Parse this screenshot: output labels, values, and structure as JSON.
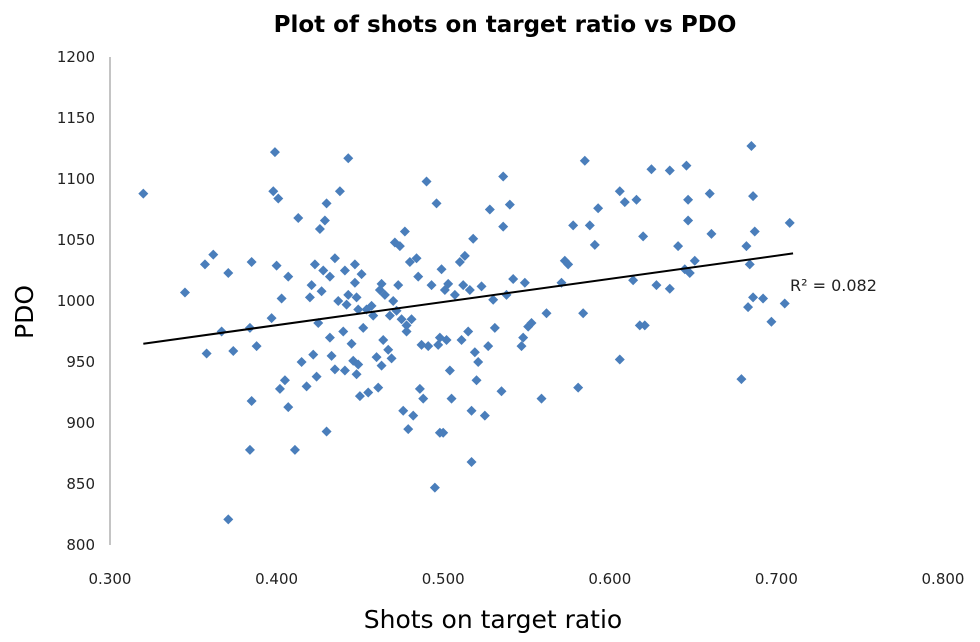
{
  "chart_data": {
    "type": "scatter",
    "title": "Plot of shots on target ratio  vs PDO",
    "xlabel": "Shots on target ratio",
    "ylabel": "PDO",
    "xlim": [
      0.3,
      0.8
    ],
    "ylim": [
      800,
      1200
    ],
    "x_ticks": [
      "0.300",
      "0.400",
      "0.500",
      "0.600",
      "0.700",
      "0.800"
    ],
    "y_ticks": [
      "800",
      "850",
      "900",
      "950",
      "1000",
      "1050",
      "1100",
      "1150",
      "1200"
    ],
    "grid": false,
    "marker": "diamond",
    "colors": {
      "points": "#4a7ebb",
      "trendline": "#000000"
    },
    "trendline": {
      "type": "linear",
      "x": [
        0.32,
        0.71
      ],
      "y": [
        965,
        1039
      ],
      "label": "R² = 0.082"
    },
    "points": [
      [
        0.32,
        1088
      ],
      [
        0.345,
        1007
      ],
      [
        0.357,
        1030
      ],
      [
        0.358,
        957
      ],
      [
        0.362,
        1038
      ],
      [
        0.367,
        975
      ],
      [
        0.371,
        1023
      ],
      [
        0.374,
        959
      ],
      [
        0.371,
        821
      ],
      [
        0.384,
        978
      ],
      [
        0.385,
        1032
      ],
      [
        0.385,
        918
      ],
      [
        0.388,
        963
      ],
      [
        0.384,
        878
      ],
      [
        0.397,
        986
      ],
      [
        0.398,
        1090
      ],
      [
        0.399,
        1122
      ],
      [
        0.4,
        1029
      ],
      [
        0.401,
        1084
      ],
      [
        0.403,
        1002
      ],
      [
        0.402,
        928
      ],
      [
        0.405,
        935
      ],
      [
        0.407,
        913
      ],
      [
        0.407,
        1020
      ],
      [
        0.411,
        878
      ],
      [
        0.413,
        1068
      ],
      [
        0.415,
        950
      ],
      [
        0.418,
        930
      ],
      [
        0.42,
        1003
      ],
      [
        0.421,
        1013
      ],
      [
        0.422,
        956
      ],
      [
        0.424,
        938
      ],
      [
        0.423,
        1030
      ],
      [
        0.425,
        982
      ],
      [
        0.426,
        1059
      ],
      [
        0.427,
        1008
      ],
      [
        0.428,
        1025
      ],
      [
        0.429,
        1066
      ],
      [
        0.43,
        1080
      ],
      [
        0.43,
        893
      ],
      [
        0.432,
        1020
      ],
      [
        0.432,
        970
      ],
      [
        0.433,
        955
      ],
      [
        0.435,
        944
      ],
      [
        0.435,
        1035
      ],
      [
        0.437,
        1000
      ],
      [
        0.438,
        1090
      ],
      [
        0.44,
        975
      ],
      [
        0.441,
        1025
      ],
      [
        0.441,
        943
      ],
      [
        0.442,
        997
      ],
      [
        0.443,
        1117
      ],
      [
        0.443,
        1005
      ],
      [
        0.445,
        965
      ],
      [
        0.446,
        951
      ],
      [
        0.447,
        1030
      ],
      [
        0.447,
        1015
      ],
      [
        0.448,
        940
      ],
      [
        0.448,
        1003
      ],
      [
        0.449,
        993
      ],
      [
        0.449,
        948
      ],
      [
        0.45,
        922
      ],
      [
        0.451,
        1022
      ],
      [
        0.452,
        978
      ],
      [
        0.454,
        993
      ],
      [
        0.455,
        925
      ],
      [
        0.457,
        996
      ],
      [
        0.458,
        988
      ],
      [
        0.46,
        954
      ],
      [
        0.461,
        929
      ],
      [
        0.462,
        1009
      ],
      [
        0.463,
        947
      ],
      [
        0.463,
        1014
      ],
      [
        0.464,
        968
      ],
      [
        0.465,
        1005
      ],
      [
        0.467,
        960
      ],
      [
        0.468,
        988
      ],
      [
        0.469,
        953
      ],
      [
        0.47,
        1000
      ],
      [
        0.471,
        1048
      ],
      [
        0.472,
        992
      ],
      [
        0.473,
        1013
      ],
      [
        0.474,
        1045
      ],
      [
        0.475,
        985
      ],
      [
        0.476,
        910
      ],
      [
        0.477,
        1057
      ],
      [
        0.478,
        975
      ],
      [
        0.478,
        980
      ],
      [
        0.479,
        895
      ],
      [
        0.48,
        1032
      ],
      [
        0.481,
        985
      ],
      [
        0.482,
        906
      ],
      [
        0.484,
        1035
      ],
      [
        0.485,
        1020
      ],
      [
        0.486,
        928
      ],
      [
        0.487,
        964
      ],
      [
        0.488,
        920
      ],
      [
        0.49,
        1098
      ],
      [
        0.491,
        963
      ],
      [
        0.493,
        1013
      ],
      [
        0.495,
        847
      ],
      [
        0.496,
        1080
      ],
      [
        0.497,
        964
      ],
      [
        0.498,
        970
      ],
      [
        0.498,
        892
      ],
      [
        0.499,
        1026
      ],
      [
        0.5,
        892
      ],
      [
        0.501,
        1009
      ],
      [
        0.502,
        968
      ],
      [
        0.503,
        1014
      ],
      [
        0.504,
        943
      ],
      [
        0.505,
        920
      ],
      [
        0.507,
        1005
      ],
      [
        0.51,
        1032
      ],
      [
        0.511,
        968
      ],
      [
        0.512,
        1013
      ],
      [
        0.513,
        1037
      ],
      [
        0.515,
        975
      ],
      [
        0.516,
        1009
      ],
      [
        0.517,
        868
      ],
      [
        0.517,
        910
      ],
      [
        0.518,
        1051
      ],
      [
        0.519,
        958
      ],
      [
        0.52,
        935
      ],
      [
        0.521,
        950
      ],
      [
        0.523,
        1012
      ],
      [
        0.525,
        906
      ],
      [
        0.527,
        963
      ],
      [
        0.528,
        1075
      ],
      [
        0.53,
        1001
      ],
      [
        0.531,
        978
      ],
      [
        0.535,
        926
      ],
      [
        0.536,
        1061
      ],
      [
        0.536,
        1102
      ],
      [
        0.538,
        1005
      ],
      [
        0.54,
        1079
      ],
      [
        0.542,
        1018
      ],
      [
        0.547,
        963
      ],
      [
        0.548,
        970
      ],
      [
        0.549,
        1015
      ],
      [
        0.551,
        979
      ],
      [
        0.553,
        982
      ],
      [
        0.559,
        920
      ],
      [
        0.562,
        990
      ],
      [
        0.571,
        1015
      ],
      [
        0.573,
        1033
      ],
      [
        0.575,
        1030
      ],
      [
        0.578,
        1062
      ],
      [
        0.581,
        929
      ],
      [
        0.584,
        990
      ],
      [
        0.585,
        1115
      ],
      [
        0.588,
        1062
      ],
      [
        0.591,
        1046
      ],
      [
        0.593,
        1076
      ],
      [
        0.606,
        952
      ],
      [
        0.606,
        1090
      ],
      [
        0.609,
        1081
      ],
      [
        0.614,
        1017
      ],
      [
        0.616,
        1083
      ],
      [
        0.618,
        980
      ],
      [
        0.62,
        1053
      ],
      [
        0.621,
        980
      ],
      [
        0.625,
        1108
      ],
      [
        0.628,
        1013
      ],
      [
        0.636,
        1010
      ],
      [
        0.636,
        1107
      ],
      [
        0.641,
        1045
      ],
      [
        0.645,
        1026
      ],
      [
        0.646,
        1111
      ],
      [
        0.647,
        1083
      ],
      [
        0.647,
        1066
      ],
      [
        0.648,
        1023
      ],
      [
        0.651,
        1033
      ],
      [
        0.66,
        1088
      ],
      [
        0.661,
        1055
      ],
      [
        0.679,
        936
      ],
      [
        0.682,
        1045
      ],
      [
        0.683,
        995
      ],
      [
        0.684,
        1030
      ],
      [
        0.685,
        1127
      ],
      [
        0.686,
        1086
      ],
      [
        0.686,
        1003
      ],
      [
        0.687,
        1057
      ],
      [
        0.692,
        1002
      ],
      [
        0.697,
        983
      ],
      [
        0.705,
        998
      ],
      [
        0.708,
        1064
      ]
    ]
  }
}
